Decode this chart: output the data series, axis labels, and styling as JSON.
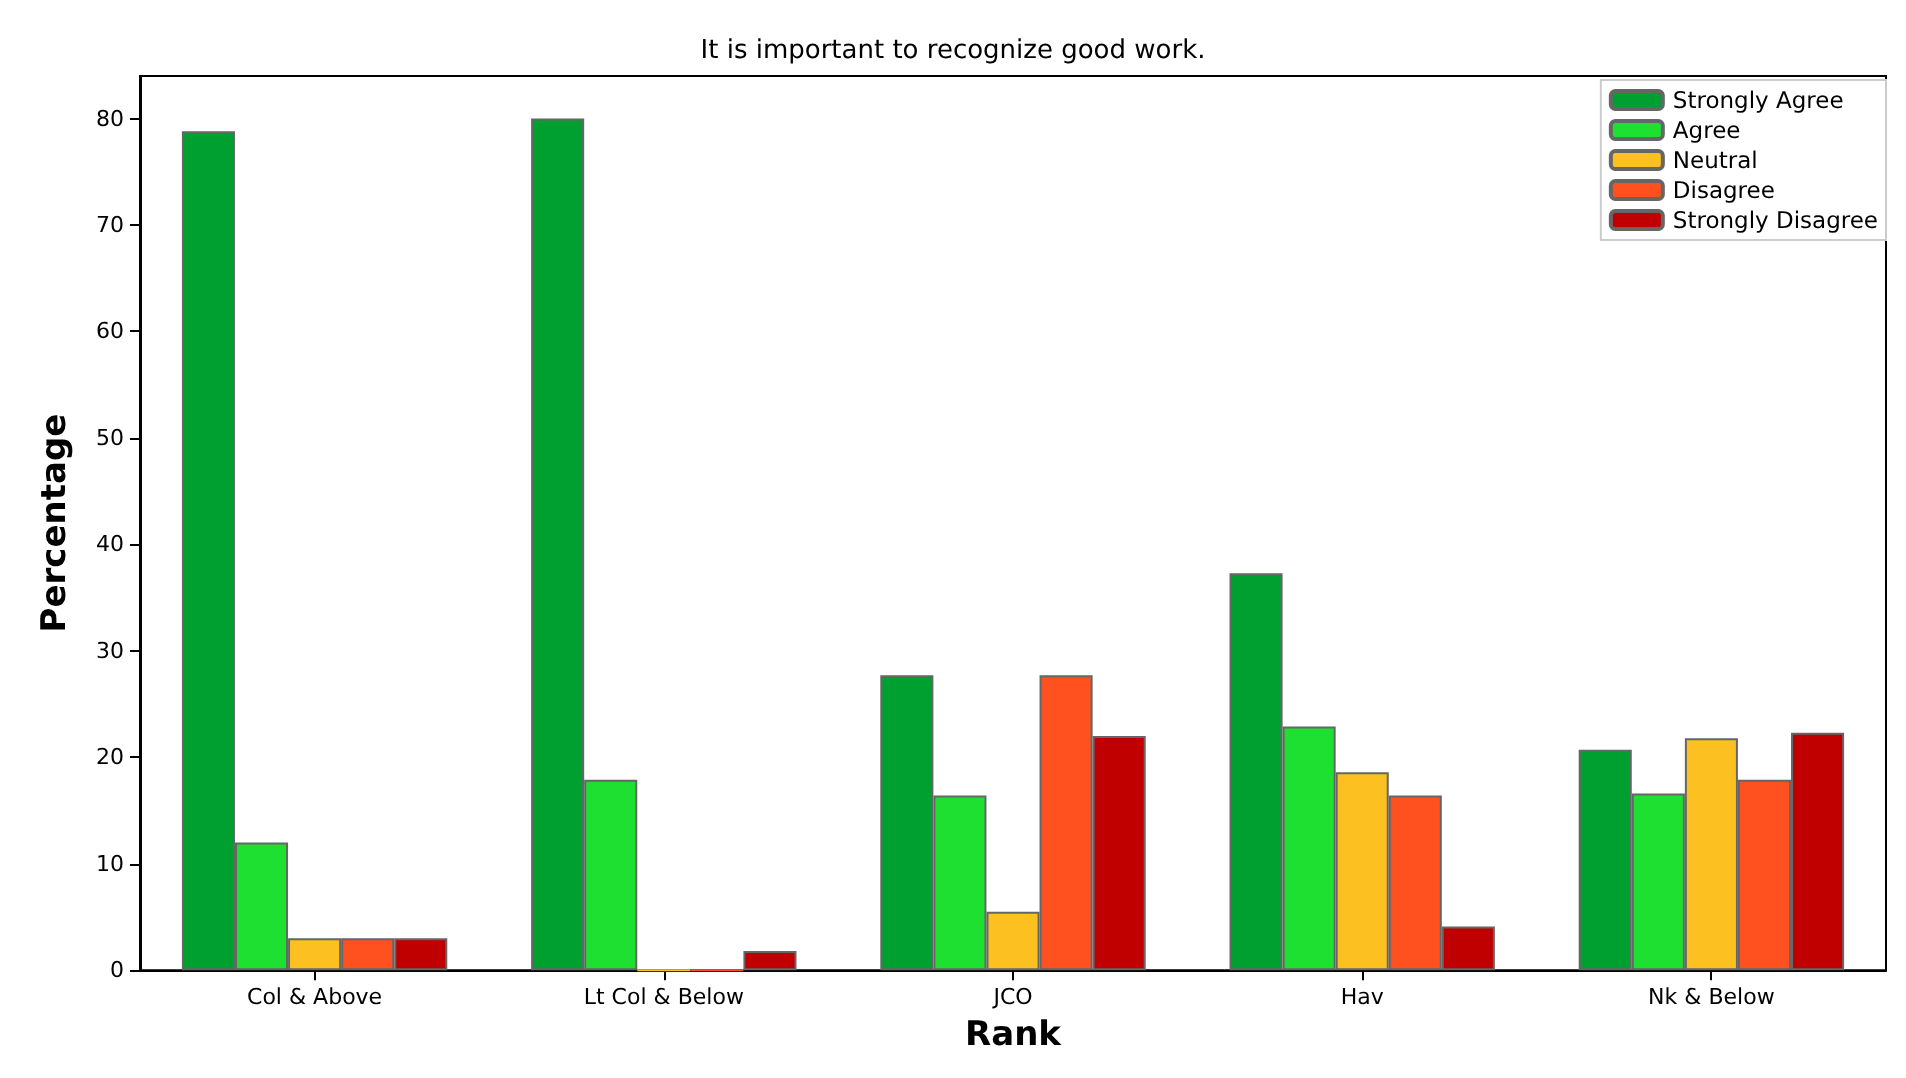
{
  "chart_data": {
    "type": "bar",
    "title": "It is important to recognize good work.",
    "xlabel": "Rank",
    "ylabel": "Percentage",
    "categories": [
      "Col & Above",
      "Lt Col & Below",
      "JCO",
      "Hav",
      "Nk & Below"
    ],
    "series": [
      {
        "name": "Strongly Agree",
        "color": "#00a030",
        "values": [
          78.8,
          80,
          27.7,
          37.3,
          20.7
        ]
      },
      {
        "name": "Agree",
        "color": "#1ee030",
        "values": [
          12,
          17.9,
          16.4,
          22.9,
          16.6
        ]
      },
      {
        "name": "Neutral",
        "color": "#fcc020",
        "values": [
          3,
          0,
          5.5,
          18.6,
          21.8
        ]
      },
      {
        "name": "Disagree",
        "color": "#ff5020",
        "values": [
          3,
          0,
          27.7,
          16.4,
          17.9
        ]
      },
      {
        "name": "Strongly Disagree",
        "color": "#c00000",
        "values": [
          3,
          1.8,
          22,
          4.1,
          22.3
        ]
      }
    ],
    "ylim": [
      0,
      84
    ],
    "yticks": [
      0,
      10,
      20,
      30,
      40,
      50,
      60,
      70,
      80
    ],
    "grid": false,
    "legend": "top right"
  }
}
